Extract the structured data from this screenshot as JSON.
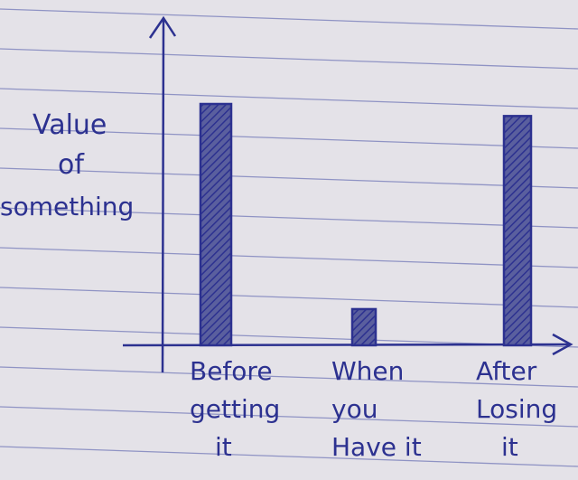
{
  "chart_data": {
    "type": "bar",
    "title": "",
    "ylabel": [
      "Value",
      "of",
      "something"
    ],
    "xlabel": "",
    "categories": [
      [
        "Before",
        "getting",
        "it"
      ],
      [
        "When",
        "you",
        "Have it"
      ],
      [
        "After",
        "Losing",
        "it"
      ]
    ],
    "values": [
      100,
      15,
      95
    ],
    "ylim": [
      0,
      130
    ],
    "grid": false,
    "colors": {
      "ink": "#2c3190",
      "paper": "#e4e2e8",
      "ruled_lines": "#8f93c4"
    }
  }
}
